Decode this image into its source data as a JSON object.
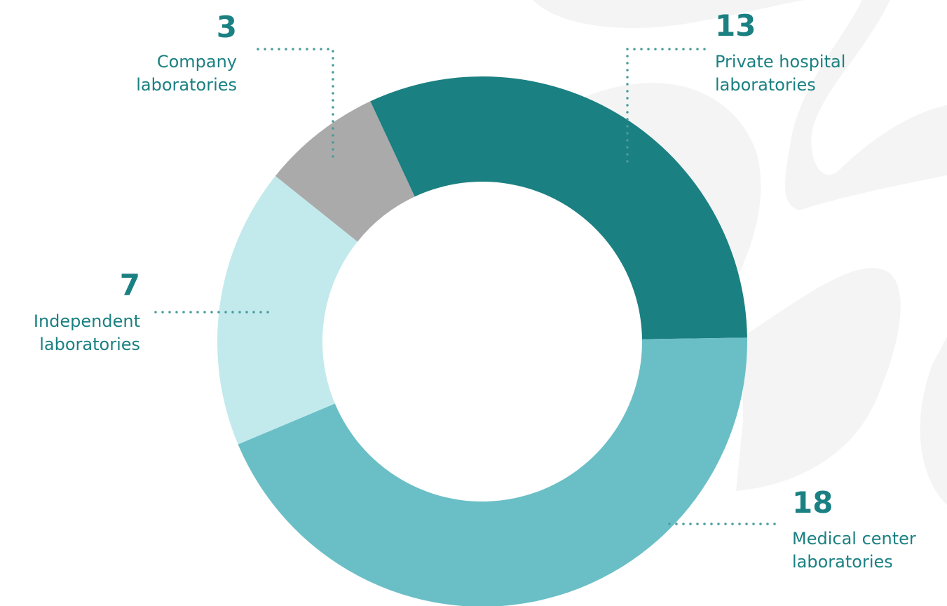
{
  "chart_data": {
    "type": "donut",
    "categories": [
      "Private hospital laboratories",
      "Medical center laboratories",
      "Independent laboratories",
      "Company laboratories"
    ],
    "values": [
      13,
      18,
      7,
      3
    ],
    "colors": [
      "#1b8082",
      "#6abfc6",
      "#c2eaec",
      "#aaaaaa"
    ]
  }
}
